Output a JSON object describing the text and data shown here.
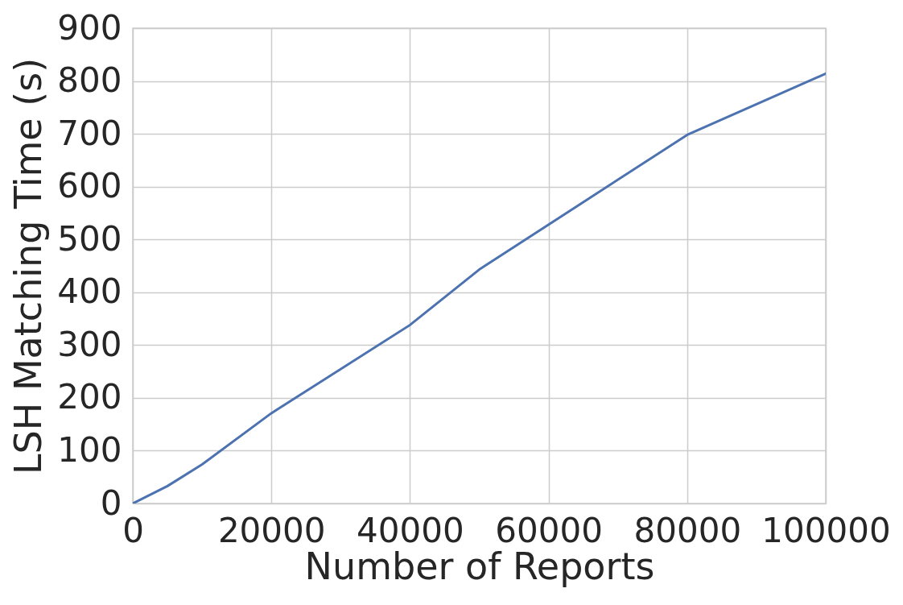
{
  "chart_data": {
    "type": "line",
    "xlabel": "Number of Reports",
    "ylabel": "LSH Matching Time (s)",
    "x": [
      0,
      5000,
      10000,
      20000,
      40000,
      50000,
      80000,
      100000
    ],
    "series": [
      {
        "color": "#4c72b0",
        "values": [
          0,
          33,
          74,
          171,
          338,
          443,
          698,
          814
        ]
      }
    ],
    "xlim": [
      0,
      100000
    ],
    "ylim": [
      0,
      900
    ],
    "xticks": [
      0,
      20000,
      40000,
      60000,
      80000,
      100000
    ],
    "yticks": [
      0,
      100,
      200,
      300,
      400,
      500,
      600,
      700,
      800,
      900
    ],
    "grid": true,
    "marker": "none",
    "line_style": "solid"
  }
}
